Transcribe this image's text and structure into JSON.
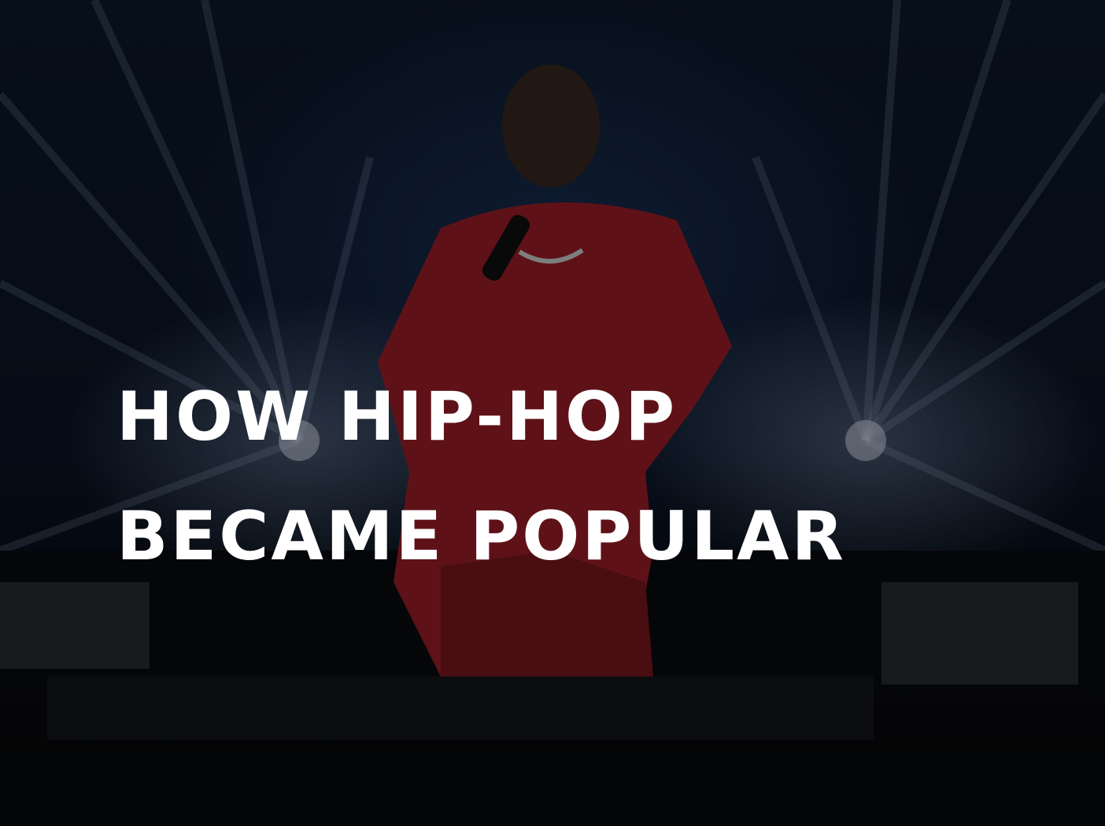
{
  "headline": {
    "line1": "HOW HIP-HOP",
    "line2": "BECAME POPULAR"
  },
  "colors": {
    "overlay": "#000000",
    "text": "#ffffff",
    "jacket": "#a3202a",
    "stage_light": "#cfe0ff"
  }
}
